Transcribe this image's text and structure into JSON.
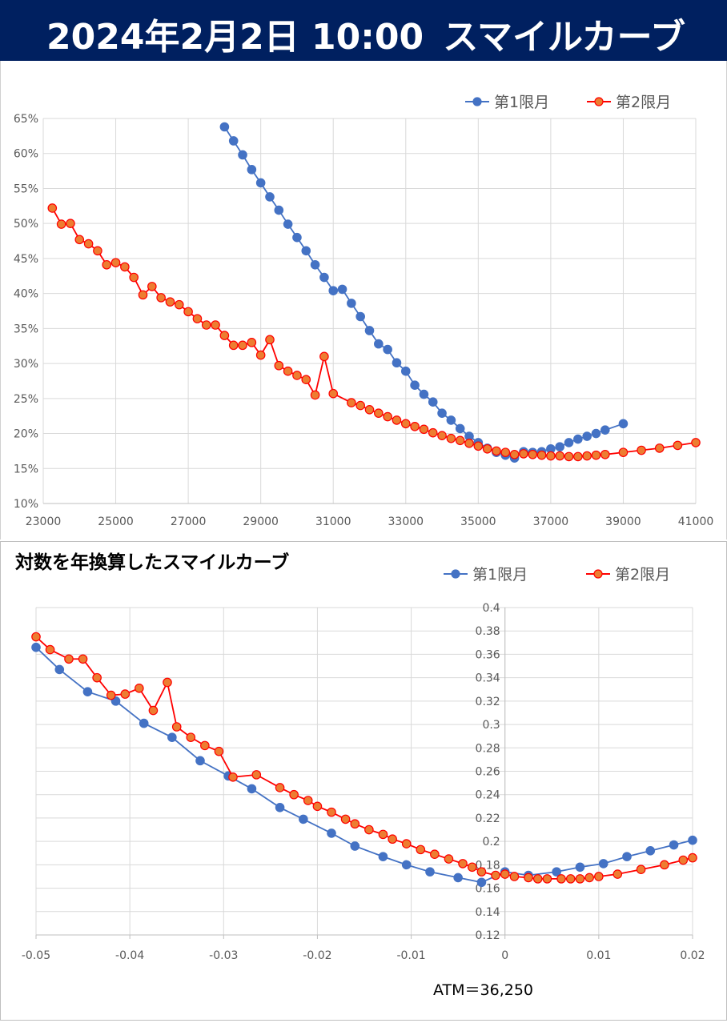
{
  "header": {
    "date": "2024年2月2日 10:00",
    "title": "スマイルカーブ"
  },
  "colors": {
    "header_bg": "#002060",
    "series1": "#4472C4",
    "series2_line": "#FF0000",
    "series2_fill": "#ED7D31",
    "grid": "#D9D9D9"
  },
  "chart_data": [
    {
      "type": "line",
      "title": "",
      "xlim": [
        23000,
        41000
      ],
      "ylim": [
        0.1,
        0.65
      ],
      "x_ticks": [
        "23000",
        "25000",
        "27000",
        "29000",
        "31000",
        "33000",
        "35000",
        "37000",
        "39000",
        "41000"
      ],
      "y_ticks": [
        "10%",
        "15%",
        "20%",
        "25%",
        "30%",
        "35%",
        "40%",
        "45%",
        "50%",
        "55%",
        "60%",
        "65%"
      ],
      "grid": true,
      "legend": "top-right",
      "series": [
        {
          "name": "第1限月",
          "x": [
            28000,
            28250,
            28500,
            28750,
            29000,
            29250,
            29500,
            29750,
            30000,
            30250,
            30500,
            30750,
            31000,
            31250,
            31500,
            31750,
            32000,
            32250,
            32500,
            32750,
            33000,
            33250,
            33500,
            33750,
            34000,
            34250,
            34500,
            34750,
            35000,
            35250,
            35500,
            35750,
            36000,
            36250,
            36500,
            36750,
            37000,
            37250,
            37500,
            37750,
            38000,
            38250,
            38500,
            39000
          ],
          "y": [
            0.638,
            0.618,
            0.598,
            0.577,
            0.558,
            0.538,
            0.519,
            0.499,
            0.48,
            0.461,
            0.441,
            0.423,
            0.404,
            0.406,
            0.386,
            0.367,
            0.347,
            0.328,
            0.32,
            0.301,
            0.289,
            0.269,
            0.256,
            0.245,
            0.229,
            0.219,
            0.207,
            0.196,
            0.187,
            0.179,
            0.173,
            0.169,
            0.165,
            0.174,
            0.173,
            0.174,
            0.178,
            0.181,
            0.187,
            0.192,
            0.196,
            0.2,
            0.205,
            0.214
          ]
        },
        {
          "name": "第2限月",
          "x": [
            23250,
            23500,
            23750,
            24000,
            24250,
            24500,
            24750,
            25000,
            25250,
            25500,
            25750,
            26000,
            26250,
            26500,
            26750,
            27000,
            27250,
            27500,
            27750,
            28000,
            28250,
            28500,
            28750,
            29000,
            29250,
            29500,
            29750,
            30000,
            30250,
            30500,
            30750,
            31000,
            31500,
            31750,
            32000,
            32250,
            32500,
            32750,
            33000,
            33250,
            33500,
            33750,
            34000,
            34250,
            34500,
            34750,
            35000,
            35250,
            35500,
            35750,
            36000,
            36250,
            36500,
            36750,
            37000,
            37250,
            37500,
            37750,
            38000,
            38250,
            38500,
            39000,
            39500,
            40000,
            40500,
            41000
          ],
          "y": [
            0.522,
            0.499,
            0.5,
            0.477,
            0.471,
            0.461,
            0.441,
            0.444,
            0.438,
            0.423,
            0.398,
            0.41,
            0.394,
            0.388,
            0.384,
            0.374,
            0.364,
            0.355,
            0.355,
            0.34,
            0.326,
            0.326,
            0.33,
            0.312,
            0.334,
            0.297,
            0.289,
            0.283,
            0.277,
            0.255,
            0.31,
            0.257,
            0.244,
            0.24,
            0.234,
            0.229,
            0.224,
            0.219,
            0.214,
            0.21,
            0.206,
            0.201,
            0.197,
            0.193,
            0.19,
            0.186,
            0.182,
            0.178,
            0.175,
            0.173,
            0.17,
            0.171,
            0.17,
            0.169,
            0.168,
            0.168,
            0.167,
            0.167,
            0.168,
            0.169,
            0.17,
            0.173,
            0.176,
            0.179,
            0.183,
            0.187
          ]
        }
      ]
    },
    {
      "type": "line",
      "title": "対数を年換算したスマイルカーブ",
      "xlim": [
        -0.05,
        0.02
      ],
      "ylim": [
        0.12,
        0.4
      ],
      "x_ticks": [
        "-0.05",
        "-0.04",
        "-0.03",
        "-0.02",
        "-0.01",
        "0",
        "0.01",
        "0.02"
      ],
      "y_ticks": [
        "0.12",
        "0.14",
        "0.16",
        "0.18",
        "0.2",
        "0.22",
        "0.24",
        "0.26",
        "0.28",
        "0.3",
        "0.32",
        "0.34",
        "0.36",
        "0.38",
        "0.4"
      ],
      "grid": true,
      "legend": "top-right",
      "annotation": "ATM＝36,250",
      "series": [
        {
          "name": "第1限月",
          "x": [
            -0.05,
            -0.0475,
            -0.0445,
            -0.0415,
            -0.0385,
            -0.0355,
            -0.0325,
            -0.0295,
            -0.027,
            -0.024,
            -0.0215,
            -0.0185,
            -0.016,
            -0.013,
            -0.0105,
            -0.008,
            -0.005,
            -0.0025,
            0.0,
            0.0025,
            0.0055,
            0.008,
            0.0105,
            0.013,
            0.0155,
            0.018,
            0.02
          ],
          "y": [
            0.366,
            0.347,
            0.328,
            0.32,
            0.301,
            0.289,
            0.269,
            0.256,
            0.245,
            0.229,
            0.219,
            0.207,
            0.196,
            0.187,
            0.18,
            0.174,
            0.169,
            0.165,
            0.174,
            0.171,
            0.174,
            0.178,
            0.181,
            0.187,
            0.192,
            0.197,
            0.201
          ]
        },
        {
          "name": "第2限月",
          "x": [
            -0.05,
            -0.0485,
            -0.0465,
            -0.045,
            -0.0435,
            -0.042,
            -0.0405,
            -0.039,
            -0.0375,
            -0.036,
            -0.035,
            -0.0335,
            -0.032,
            -0.0305,
            -0.029,
            -0.0265,
            -0.024,
            -0.0225,
            -0.021,
            -0.02,
            -0.0185,
            -0.017,
            -0.016,
            -0.0145,
            -0.013,
            -0.012,
            -0.0105,
            -0.009,
            -0.0075,
            -0.006,
            -0.0045,
            -0.0035,
            -0.0025,
            -0.001,
            0.0,
            0.001,
            0.0025,
            0.0035,
            0.0045,
            0.006,
            0.007,
            0.008,
            0.009,
            0.01,
            0.012,
            0.0145,
            0.017,
            0.019,
            0.02
          ],
          "y": [
            0.375,
            0.364,
            0.356,
            0.356,
            0.34,
            0.325,
            0.326,
            0.331,
            0.312,
            0.336,
            0.298,
            0.289,
            0.282,
            0.277,
            0.255,
            0.257,
            0.246,
            0.24,
            0.235,
            0.23,
            0.225,
            0.219,
            0.215,
            0.21,
            0.206,
            0.202,
            0.198,
            0.193,
            0.189,
            0.185,
            0.181,
            0.178,
            0.174,
            0.171,
            0.172,
            0.17,
            0.169,
            0.168,
            0.168,
            0.168,
            0.168,
            0.168,
            0.169,
            0.17,
            0.172,
            0.176,
            0.18,
            0.184,
            0.186
          ]
        }
      ]
    }
  ]
}
